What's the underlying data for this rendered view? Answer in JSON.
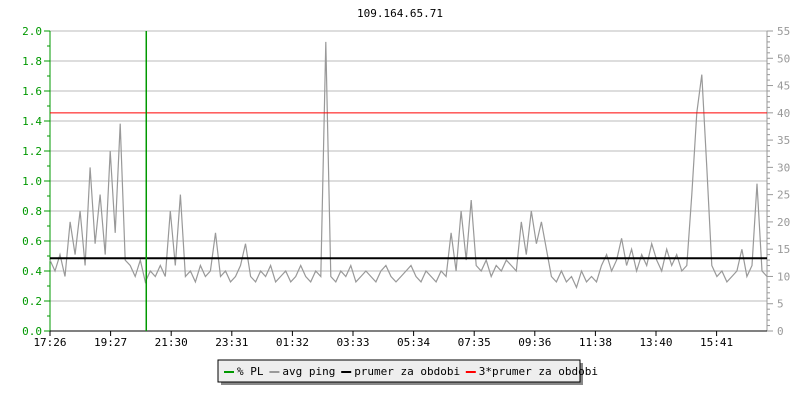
{
  "chart_data": {
    "type": "line",
    "title": "109.164.65.71",
    "x_tick_labels": [
      "17:26",
      "19:27",
      "21:30",
      "23:31",
      "01:32",
      "03:33",
      "05:34",
      "07:35",
      "09:36",
      "11:38",
      "13:40",
      "15:41"
    ],
    "y_left": {
      "range": [
        0,
        2.0
      ],
      "ticks": [
        "0.0",
        "0.2",
        "0.4",
        "0.6",
        "0.8",
        "1.0",
        "1.2",
        "1.4",
        "1.6",
        "1.8",
        "2.0"
      ],
      "color": "#009900"
    },
    "y_right": {
      "range": [
        0,
        55
      ],
      "ticks": [
        "0",
        "5",
        "10",
        "15",
        "20",
        "25",
        "30",
        "35",
        "40",
        "45",
        "50",
        "55"
      ],
      "color": "#999999"
    },
    "grid": true,
    "legend_placement": "bottom",
    "series": [
      {
        "name": "% PL",
        "color": "#009900",
        "axis": "left",
        "type": "spike",
        "spikes": [
          {
            "index": 19,
            "value": 2.0
          }
        ]
      },
      {
        "name": "avg ping",
        "color": "#999999",
        "axis": "right",
        "values": [
          13,
          11,
          14,
          10,
          20,
          14,
          22,
          12,
          30,
          16,
          25,
          14,
          33,
          18,
          38,
          13,
          12,
          10,
          13,
          9,
          11,
          10,
          12,
          10,
          22,
          12,
          25,
          10,
          11,
          9,
          12,
          10,
          11,
          18,
          10,
          11,
          9,
          10,
          12,
          16,
          10,
          9,
          11,
          10,
          12,
          9,
          10,
          11,
          9,
          10,
          12,
          10,
          9,
          11,
          10,
          53,
          10,
          9,
          11,
          10,
          12,
          9,
          10,
          11,
          10,
          9,
          11,
          12,
          10,
          9,
          10,
          11,
          12,
          10,
          9,
          11,
          10,
          9,
          11,
          10,
          18,
          11,
          22,
          13,
          24,
          12,
          11,
          13,
          10,
          12,
          11,
          13,
          12,
          11,
          20,
          14,
          22,
          16,
          20,
          15,
          10,
          9,
          11,
          9,
          10,
          8,
          11,
          9,
          10,
          9,
          12,
          14,
          11,
          13,
          17,
          12,
          15,
          11,
          14,
          12,
          16,
          13,
          11,
          15,
          12,
          14,
          11,
          12,
          25,
          40,
          47,
          30,
          12,
          10,
          11,
          9,
          10,
          11,
          15,
          10,
          12,
          27,
          11,
          10
        ]
      },
      {
        "name": "prumer za obdobi",
        "color": "#000000",
        "axis": "right",
        "value": 13.33
      },
      {
        "name": "3*prumer za obdobi",
        "color": "#ff0000",
        "axis": "right",
        "value": 40
      }
    ]
  }
}
